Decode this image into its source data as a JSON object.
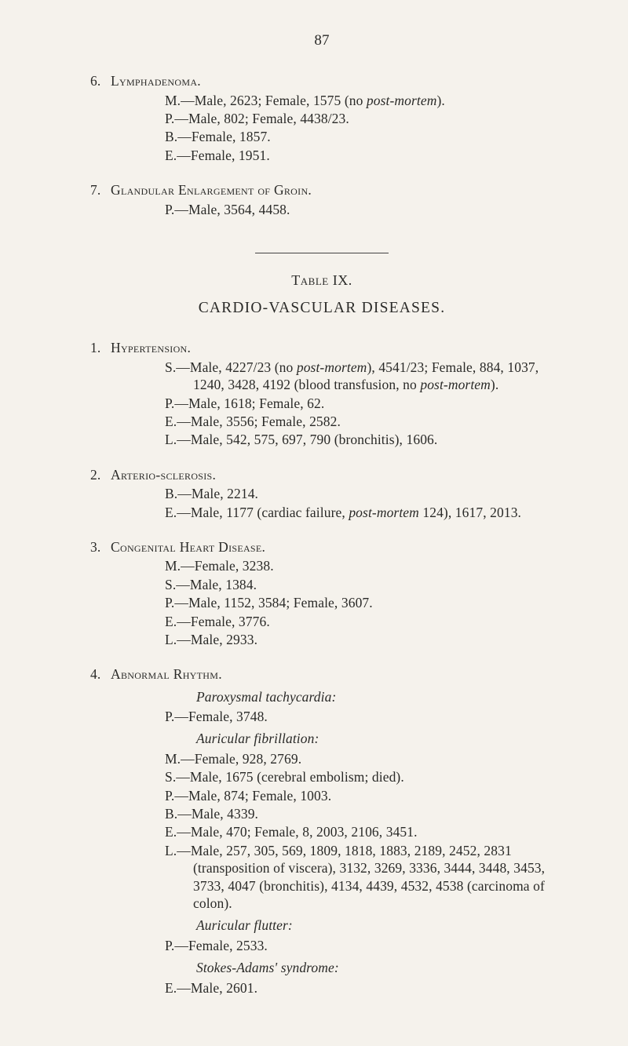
{
  "pageNumber": "87",
  "entries_top": [
    {
      "num": "6.",
      "title": "Lymphadenoma.",
      "lines": [
        "M.—Male, 2623; Female, 1575 (no <em>post-mortem</em>).",
        "P.—Male, 802; Female, 4438/23.",
        "B.—Female, 1857.",
        "E.—Female, 1951."
      ]
    },
    {
      "num": "7.",
      "title": "Glandular Enlargement of Groin.",
      "lines": [
        "P.—Male, 3564, 4458."
      ]
    }
  ],
  "tableLabel": "Table IX.",
  "sectionTitle": "CARDIO-VASCULAR DISEASES.",
  "entries_bottom": [
    {
      "num": "1.",
      "title": "Hypertension.",
      "lines": [
        "S.—Male, 4227/23 (no <em>post-mortem</em>), 4541/23; Female, 884, 1037, 1240, 3428, 4192 (blood transfusion, no <em>post-mortem</em>).",
        "P.—Male, 1618; Female, 62.",
        "E.—Male, 3556; Female, 2582.",
        "L.—Male, 542, 575, 697, 790 (bronchitis), 1606."
      ]
    },
    {
      "num": "2.",
      "title": "Arterio-sclerosis.",
      "lines": [
        "B.—Male, 2214.",
        "E.—Male, 1177 (cardiac failure, <em>post-mortem</em> 124), 1617, 2013."
      ]
    },
    {
      "num": "3.",
      "title": "Congenital Heart Disease.",
      "lines": [
        "M.—Female, 3238.",
        "S.—Male, 1384.",
        "P.—Male, 1152, 3584; Female, 3607.",
        "E.—Female, 3776.",
        "L.—Male, 2933."
      ]
    },
    {
      "num": "4.",
      "title": "Abnormal Rhythm.",
      "groups": [
        {
          "label": "Paroxysmal tachycardia:",
          "lines": [
            "P.—Female, 3748."
          ]
        },
        {
          "label": "Auricular fibrillation:",
          "lines": [
            "M.—Female, 928, 2769.",
            "S.—Male, 1675 (cerebral embolism; died).",
            "P.—Male, 874; Female, 1003.",
            "B.—Male, 4339.",
            "E.—Male, 470; Female, 8, 2003, 2106, 3451.",
            "L.—Male, 257, 305, 569, 1809, 1818, 1883, 2189, 2452, 2831 (transposition of viscera), 3132, 3269, 3336, 3444, 3448, 3453, 3733, 4047 (bronchitis), 4134, 4439, 4532, 4538 (carcinoma of colon)."
          ]
        },
        {
          "label": "Auricular flutter:",
          "lines": [
            "P.—Female, 2533."
          ]
        },
        {
          "label": "Stokes-Adams' syndrome:",
          "lines": [
            "E.—Male, 2601."
          ]
        }
      ]
    }
  ]
}
